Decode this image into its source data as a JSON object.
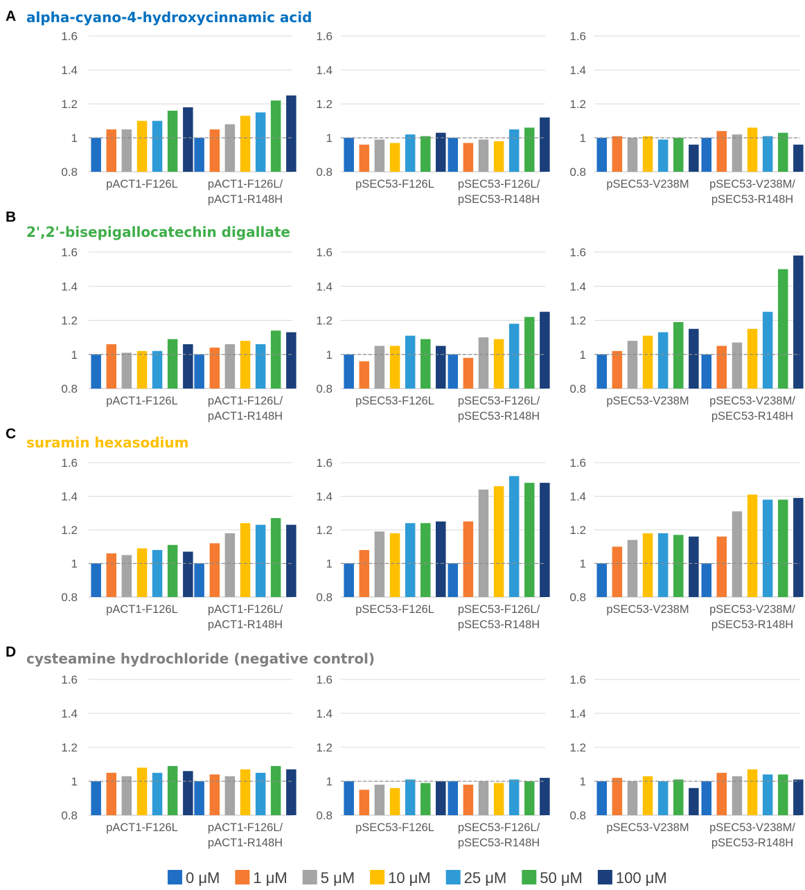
{
  "legend": {
    "items": [
      {
        "label": "0 μM",
        "color": "#1f6fc5"
      },
      {
        "label": "1 μM",
        "color": "#f47b31"
      },
      {
        "label": "5 μM",
        "color": "#a5a5a5"
      },
      {
        "label": "10 μM",
        "color": "#ffc000"
      },
      {
        "label": "25 μM",
        "color": "#2e9bd6"
      },
      {
        "label": "50 μM",
        "color": "#3fae49"
      },
      {
        "label": "100 μM",
        "color": "#1a3f7a"
      }
    ]
  },
  "reference_line": {
    "value": 1,
    "style": "dashed"
  },
  "chart_data": [
    {
      "panel": "A",
      "title": "alpha-cyano-4-hydroxycinnamic acid",
      "title_color": "#0070c0",
      "charts": [
        {
          "type": "bar",
          "ylim": [
            0.8,
            1.6
          ],
          "yticks": [
            "0.8",
            "1",
            "1.2",
            "1.4",
            "1.6"
          ],
          "categories": [
            [
              "pACT1-F126L"
            ],
            [
              "pACT1-F126L/",
              "pACT1-R148H"
            ]
          ],
          "series": [
            {
              "name": "0 μM",
              "values": [
                1.0,
                1.0
              ]
            },
            {
              "name": "1 μM",
              "values": [
                1.05,
                1.05
              ]
            },
            {
              "name": "5 μM",
              "values": [
                1.05,
                1.08
              ]
            },
            {
              "name": "10 μM",
              "values": [
                1.1,
                1.13
              ]
            },
            {
              "name": "25 μM",
              "values": [
                1.1,
                1.15
              ]
            },
            {
              "name": "50 μM",
              "values": [
                1.16,
                1.22
              ]
            },
            {
              "name": "100 μM",
              "values": [
                1.18,
                1.25
              ]
            }
          ]
        },
        {
          "type": "bar",
          "ylim": [
            0.8,
            1.6
          ],
          "yticks": [
            "0.8",
            "1",
            "1.2",
            "1.4",
            "1.6"
          ],
          "categories": [
            [
              "pSEC53-F126L"
            ],
            [
              "pSEC53-F126L/",
              "pSEC53-R148H"
            ]
          ],
          "series": [
            {
              "name": "0 μM",
              "values": [
                1.0,
                1.0
              ]
            },
            {
              "name": "1 μM",
              "values": [
                0.96,
                0.97
              ]
            },
            {
              "name": "5 μM",
              "values": [
                0.99,
                0.99
              ]
            },
            {
              "name": "10 μM",
              "values": [
                0.97,
                0.98
              ]
            },
            {
              "name": "25 μM",
              "values": [
                1.02,
                1.05
              ]
            },
            {
              "name": "50 μM",
              "values": [
                1.01,
                1.06
              ]
            },
            {
              "name": "100 μM",
              "values": [
                1.03,
                1.12
              ]
            }
          ]
        },
        {
          "type": "bar",
          "ylim": [
            0.8,
            1.6
          ],
          "yticks": [
            "0.8",
            "1",
            "1.2",
            "1.4",
            "1.6"
          ],
          "categories": [
            [
              "pSEC53-V238M"
            ],
            [
              "pSEC53-V238M/",
              "pSEC53-R148H"
            ]
          ],
          "series": [
            {
              "name": "0 μM",
              "values": [
                1.0,
                1.0
              ]
            },
            {
              "name": "1 μM",
              "values": [
                1.01,
                1.04
              ]
            },
            {
              "name": "5 μM",
              "values": [
                1.0,
                1.02
              ]
            },
            {
              "name": "10 μM",
              "values": [
                1.01,
                1.06
              ]
            },
            {
              "name": "25 μM",
              "values": [
                0.99,
                1.01
              ]
            },
            {
              "name": "50 μM",
              "values": [
                1.0,
                1.03
              ]
            },
            {
              "name": "100 μM",
              "values": [
                0.96,
                0.96
              ]
            }
          ]
        }
      ]
    },
    {
      "panel": "B",
      "title": "2',2'-bisepigallocatechin digallate",
      "title_color": "#3fae49",
      "charts": [
        {
          "type": "bar",
          "ylim": [
            0.8,
            1.6
          ],
          "yticks": [
            "0.8",
            "1",
            "1.2",
            "1.4",
            "1.6"
          ],
          "categories": [
            [
              "pACT1-F126L"
            ],
            [
              "pACT1-F126L/",
              "pACT1-R148H"
            ]
          ],
          "series": [
            {
              "name": "0 μM",
              "values": [
                1.0,
                1.0
              ]
            },
            {
              "name": "1 μM",
              "values": [
                1.06,
                1.04
              ]
            },
            {
              "name": "5 μM",
              "values": [
                1.01,
                1.06
              ]
            },
            {
              "name": "10 μM",
              "values": [
                1.02,
                1.08
              ]
            },
            {
              "name": "25 μM",
              "values": [
                1.02,
                1.06
              ]
            },
            {
              "name": "50 μM",
              "values": [
                1.09,
                1.14
              ]
            },
            {
              "name": "100 μM",
              "values": [
                1.06,
                1.13
              ]
            }
          ]
        },
        {
          "type": "bar",
          "ylim": [
            0.8,
            1.6
          ],
          "yticks": [
            "0.8",
            "1",
            "1.2",
            "1.4",
            "1.6"
          ],
          "categories": [
            [
              "pSEC53-F126L"
            ],
            [
              "pSEC53-F126L/",
              "pSEC53-R148H"
            ]
          ],
          "series": [
            {
              "name": "0 μM",
              "values": [
                1.0,
                1.0
              ]
            },
            {
              "name": "1 μM",
              "values": [
                0.96,
                0.98
              ]
            },
            {
              "name": "5 μM",
              "values": [
                1.05,
                1.1
              ]
            },
            {
              "name": "10 μM",
              "values": [
                1.05,
                1.09
              ]
            },
            {
              "name": "25 μM",
              "values": [
                1.11,
                1.18
              ]
            },
            {
              "name": "50 μM",
              "values": [
                1.09,
                1.22
              ]
            },
            {
              "name": "100 μM",
              "values": [
                1.05,
                1.25
              ]
            }
          ]
        },
        {
          "type": "bar",
          "ylim": [
            0.8,
            1.6
          ],
          "yticks": [
            "0.8",
            "1",
            "1.2",
            "1.4",
            "1.6"
          ],
          "categories": [
            [
              "pSEC53-V238M"
            ],
            [
              "pSEC53-V238M/",
              "pSEC53-R148H"
            ]
          ],
          "series": [
            {
              "name": "0 μM",
              "values": [
                1.0,
                1.0
              ]
            },
            {
              "name": "1 μM",
              "values": [
                1.02,
                1.05
              ]
            },
            {
              "name": "5 μM",
              "values": [
                1.08,
                1.07
              ]
            },
            {
              "name": "10 μM",
              "values": [
                1.11,
                1.15
              ]
            },
            {
              "name": "25 μM",
              "values": [
                1.13,
                1.25
              ]
            },
            {
              "name": "50 μM",
              "values": [
                1.19,
                1.5
              ]
            },
            {
              "name": "100 μM",
              "values": [
                1.15,
                1.58
              ]
            }
          ]
        }
      ]
    },
    {
      "panel": "C",
      "title": "suramin hexasodium",
      "title_color": "#ffc000",
      "charts": [
        {
          "type": "bar",
          "ylim": [
            0.8,
            1.6
          ],
          "yticks": [
            "0.8",
            "1",
            "1.2",
            "1.4",
            "1.6"
          ],
          "categories": [
            [
              "pACT1-F126L"
            ],
            [
              "pACT1-F126L/",
              "pACT1-R148H"
            ]
          ],
          "series": [
            {
              "name": "0 μM",
              "values": [
                1.0,
                1.0
              ]
            },
            {
              "name": "1 μM",
              "values": [
                1.06,
                1.12
              ]
            },
            {
              "name": "5 μM",
              "values": [
                1.05,
                1.18
              ]
            },
            {
              "name": "10 μM",
              "values": [
                1.09,
                1.24
              ]
            },
            {
              "name": "25 μM",
              "values": [
                1.08,
                1.23
              ]
            },
            {
              "name": "50 μM",
              "values": [
                1.11,
                1.27
              ]
            },
            {
              "name": "100 μM",
              "values": [
                1.07,
                1.23
              ]
            }
          ]
        },
        {
          "type": "bar",
          "ylim": [
            0.8,
            1.6
          ],
          "yticks": [
            "0.8",
            "1",
            "1.2",
            "1.4",
            "1.6"
          ],
          "categories": [
            [
              "pSEC53-F126L"
            ],
            [
              "pSEC53-F126L/",
              "pSEC53-R148H"
            ]
          ],
          "series": [
            {
              "name": "0 μM",
              "values": [
                1.0,
                1.0
              ]
            },
            {
              "name": "1 μM",
              "values": [
                1.08,
                1.25
              ]
            },
            {
              "name": "5 μM",
              "values": [
                1.19,
                1.44
              ]
            },
            {
              "name": "10 μM",
              "values": [
                1.18,
                1.46
              ]
            },
            {
              "name": "25 μM",
              "values": [
                1.24,
                1.52
              ]
            },
            {
              "name": "50 μM",
              "values": [
                1.24,
                1.48
              ]
            },
            {
              "name": "100 μM",
              "values": [
                1.25,
                1.48
              ]
            }
          ]
        },
        {
          "type": "bar",
          "ylim": [
            0.8,
            1.6
          ],
          "yticks": [
            "0.8",
            "1",
            "1.2",
            "1.4",
            "1.6"
          ],
          "categories": [
            [
              "pSEC53-V238M"
            ],
            [
              "pSEC53-V238M/",
              "pSEC53-R148H"
            ]
          ],
          "series": [
            {
              "name": "0 μM",
              "values": [
                1.0,
                1.0
              ]
            },
            {
              "name": "1 μM",
              "values": [
                1.1,
                1.16
              ]
            },
            {
              "name": "5 μM",
              "values": [
                1.14,
                1.31
              ]
            },
            {
              "name": "10 μM",
              "values": [
                1.18,
                1.41
              ]
            },
            {
              "name": "25 μM",
              "values": [
                1.18,
                1.38
              ]
            },
            {
              "name": "50 μM",
              "values": [
                1.17,
                1.38
              ]
            },
            {
              "name": "100 μM",
              "values": [
                1.16,
                1.39
              ]
            }
          ]
        }
      ]
    },
    {
      "panel": "D",
      "title": "cysteamine hydrochloride (negative control)",
      "title_color": "#7f7f7f",
      "charts": [
        {
          "type": "bar",
          "ylim": [
            0.8,
            1.6
          ],
          "yticks": [
            "0.8",
            "1",
            "1.2",
            "1.4",
            "1.6"
          ],
          "categories": [
            [
              "pACT1-F126L"
            ],
            [
              "pACT1-F126L/",
              "pACT1-R148H"
            ]
          ],
          "series": [
            {
              "name": "0 μM",
              "values": [
                1.0,
                1.0
              ]
            },
            {
              "name": "1 μM",
              "values": [
                1.05,
                1.04
              ]
            },
            {
              "name": "5 μM",
              "values": [
                1.03,
                1.03
              ]
            },
            {
              "name": "10 μM",
              "values": [
                1.08,
                1.07
              ]
            },
            {
              "name": "25 μM",
              "values": [
                1.05,
                1.05
              ]
            },
            {
              "name": "50 μM",
              "values": [
                1.09,
                1.09
              ]
            },
            {
              "name": "100 μM",
              "values": [
                1.06,
                1.07
              ]
            }
          ]
        },
        {
          "type": "bar",
          "ylim": [
            0.8,
            1.6
          ],
          "yticks": [
            "0.8",
            "1",
            "1.2",
            "1.4",
            "1.6"
          ],
          "categories": [
            [
              "pSEC53-F126L"
            ],
            [
              "pSEC53-F126L/",
              "pSEC53-R148H"
            ]
          ],
          "series": [
            {
              "name": "0 μM",
              "values": [
                1.0,
                1.0
              ]
            },
            {
              "name": "1 μM",
              "values": [
                0.95,
                0.98
              ]
            },
            {
              "name": "5 μM",
              "values": [
                0.98,
                1.0
              ]
            },
            {
              "name": "10 μM",
              "values": [
                0.96,
                0.99
              ]
            },
            {
              "name": "25 μM",
              "values": [
                1.01,
                1.01
              ]
            },
            {
              "name": "50 μM",
              "values": [
                0.99,
                1.0
              ]
            },
            {
              "name": "100 μM",
              "values": [
                1.0,
                1.02
              ]
            }
          ]
        },
        {
          "type": "bar",
          "ylim": [
            0.8,
            1.6
          ],
          "yticks": [
            "0.8",
            "1",
            "1.2",
            "1.4",
            "1.6"
          ],
          "categories": [
            [
              "pSEC53-V238M"
            ],
            [
              "pSEC53-V238M/",
              "pSEC53-R148H"
            ]
          ],
          "series": [
            {
              "name": "0 μM",
              "values": [
                1.0,
                1.0
              ]
            },
            {
              "name": "1 μM",
              "values": [
                1.02,
                1.05
              ]
            },
            {
              "name": "5 μM",
              "values": [
                1.0,
                1.03
              ]
            },
            {
              "name": "10 μM",
              "values": [
                1.03,
                1.07
              ]
            },
            {
              "name": "25 μM",
              "values": [
                1.0,
                1.04
              ]
            },
            {
              "name": "50 μM",
              "values": [
                1.01,
                1.04
              ]
            },
            {
              "name": "100 μM",
              "values": [
                0.96,
                1.01
              ]
            }
          ]
        }
      ]
    }
  ]
}
